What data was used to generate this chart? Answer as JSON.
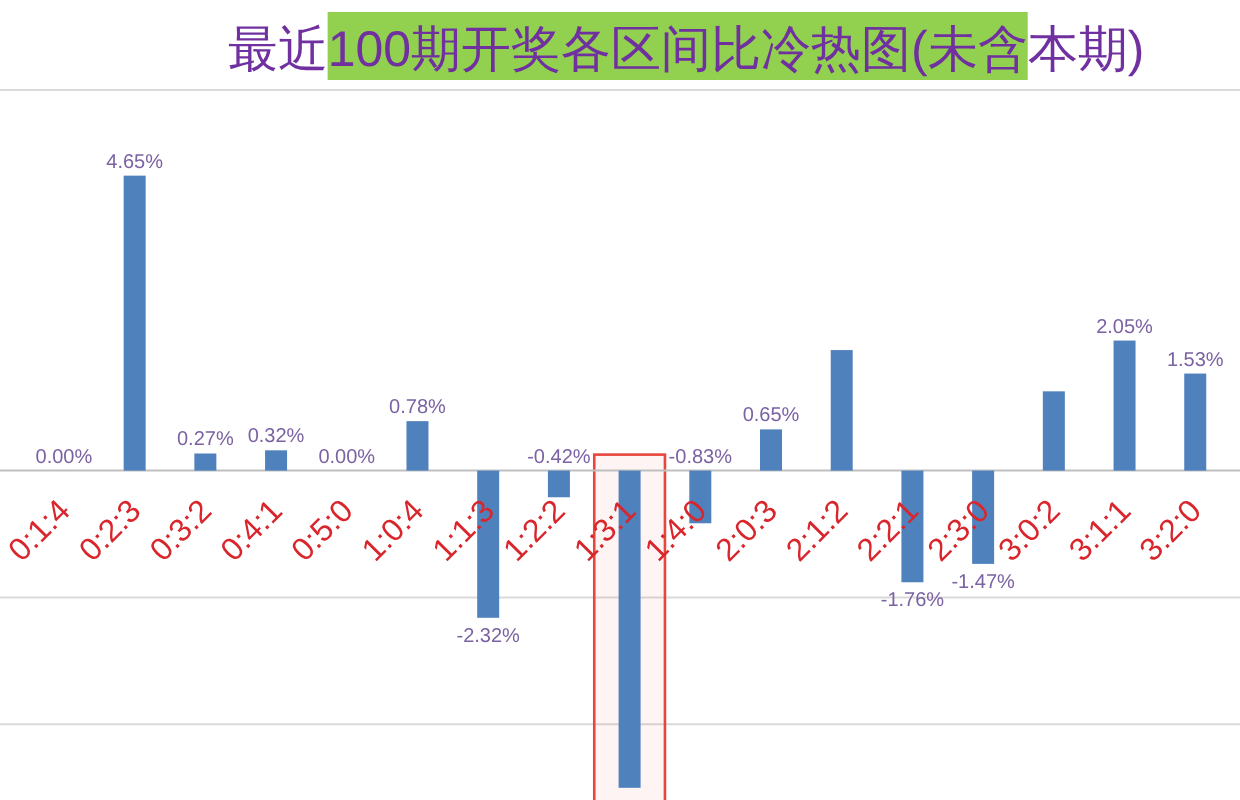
{
  "chart_data": {
    "type": "bar",
    "title": "最近100期开奖各区间比冷热图(未含本期)",
    "categories": [
      "0:1:4",
      "0:2:3",
      "0:3:2",
      "0:4:1",
      "0:5:0",
      "1:0:4",
      "1:1:3",
      "1:2:2",
      "1:3:1",
      "1:4:0",
      "2:0:3",
      "2:1:2",
      "2:2:1",
      "2:3:0",
      "3:0:2",
      "3:1:1",
      "3:2:0"
    ],
    "values": [
      0,
      4.65,
      0.27,
      0.32,
      0,
      0.78,
      -2.32,
      -0.42,
      -5.0,
      -0.83,
      0.65,
      1.9,
      -1.76,
      -1.47,
      1.25,
      2.05,
      1.53
    ],
    "value_labels": [
      "0.00%",
      "4.65%",
      "0.27%",
      "0.32%",
      "0.00%",
      "0.78%",
      "-2.32%",
      "-0.42%",
      null,
      "-0.83%",
      "0.65%",
      null,
      "-1.76%",
      "-1.47%",
      null,
      "2.05%",
      "1.53%"
    ],
    "color": "#4f81bd",
    "ref_lines": [
      {
        "axis": "y",
        "value": 6,
        "color": "#d9d9d9"
      },
      {
        "axis": "y",
        "value": -2,
        "color": "#d9d9d9"
      },
      {
        "axis": "y",
        "value": -4,
        "color": "#d9d9d9"
      }
    ],
    "bands": [
      {
        "axis": "x",
        "from": "1:3:1",
        "to": "1:3:1",
        "color": "#e8453c"
      }
    ],
    "tick_labels": "x"
  }
}
